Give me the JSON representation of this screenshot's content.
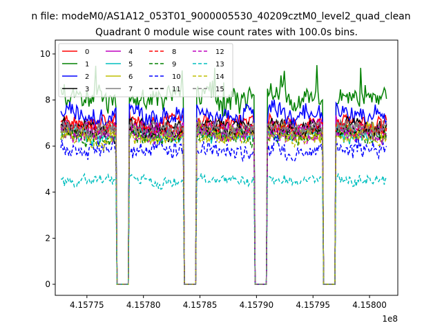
{
  "chart_data": {
    "type": "line",
    "suptitle": "n file: modeM0/AS1A12_053T01_9000005530_40209cztM0_level2_quad_clean",
    "title": "Quadrant 0 module wise count rates with 100.0s bins.",
    "xlabel": "",
    "ylabel": "",
    "x_offset_label": "1e8",
    "xlim": [
      4.157722,
      4.158025
    ],
    "ylim": [
      -0.48,
      10.6
    ],
    "x_ticks": [
      4.15775,
      4.1578,
      4.15785,
      4.1579,
      4.15795,
      4.158
    ],
    "x_tick_labels": [
      "4.15775",
      "4.15780",
      "4.15785",
      "4.15790",
      "4.15795",
      "4.15800"
    ],
    "y_ticks": [
      0,
      2,
      4,
      6,
      8,
      10
    ],
    "y_tick_labels": [
      "0",
      "2",
      "4",
      "6",
      "8",
      "10"
    ],
    "data_range": [
      4.157727,
      4.158015
    ],
    "gaps": [
      [
        4.157776,
        4.157787
      ],
      [
        4.157836,
        4.157847
      ],
      [
        4.157898,
        4.157909
      ],
      [
        4.157959,
        4.15797
      ]
    ],
    "legend_position": "upper left",
    "series": [
      {
        "name": "0",
        "color": "#ff0000",
        "dash": "solid",
        "level": 7.2,
        "amp": 0.5
      },
      {
        "name": "1",
        "color": "#008000",
        "dash": "solid",
        "level": 8.3,
        "amp": 0.8
      },
      {
        "name": "2",
        "color": "#0000ff",
        "dash": "solid",
        "level": 7.5,
        "amp": 0.7
      },
      {
        "name": "3",
        "color": "#000000",
        "dash": "solid",
        "level": 7.0,
        "amp": 0.5
      },
      {
        "name": "4",
        "color": "#bf00bf",
        "dash": "solid",
        "level": 6.9,
        "amp": 0.5
      },
      {
        "name": "5",
        "color": "#00bfbf",
        "dash": "solid",
        "level": 6.6,
        "amp": 0.5
      },
      {
        "name": "6",
        "color": "#bfbf00",
        "dash": "solid",
        "level": 6.7,
        "amp": 0.5
      },
      {
        "name": "7",
        "color": "#808080",
        "dash": "solid",
        "level": 6.8,
        "amp": 0.5
      },
      {
        "name": "8",
        "color": "#ff0000",
        "dash": "dashed",
        "level": 6.9,
        "amp": 0.5
      },
      {
        "name": "9",
        "color": "#008000",
        "dash": "dashed",
        "level": 6.5,
        "amp": 0.5
      },
      {
        "name": "10",
        "color": "#0000ff",
        "dash": "dashed",
        "level": 6.0,
        "amp": 0.6
      },
      {
        "name": "11",
        "color": "#000000",
        "dash": "dashed",
        "level": 6.7,
        "amp": 0.5
      },
      {
        "name": "12",
        "color": "#bf00bf",
        "dash": "dashed",
        "level": 6.6,
        "amp": 0.5
      },
      {
        "name": "13",
        "color": "#00bfbf",
        "dash": "dashed",
        "level": 4.6,
        "amp": 0.35
      },
      {
        "name": "14",
        "color": "#bfbf00",
        "dash": "dashed",
        "level": 6.5,
        "amp": 0.5
      },
      {
        "name": "15",
        "color": "#808080",
        "dash": "dashed",
        "level": 6.9,
        "amp": 0.5
      }
    ]
  }
}
